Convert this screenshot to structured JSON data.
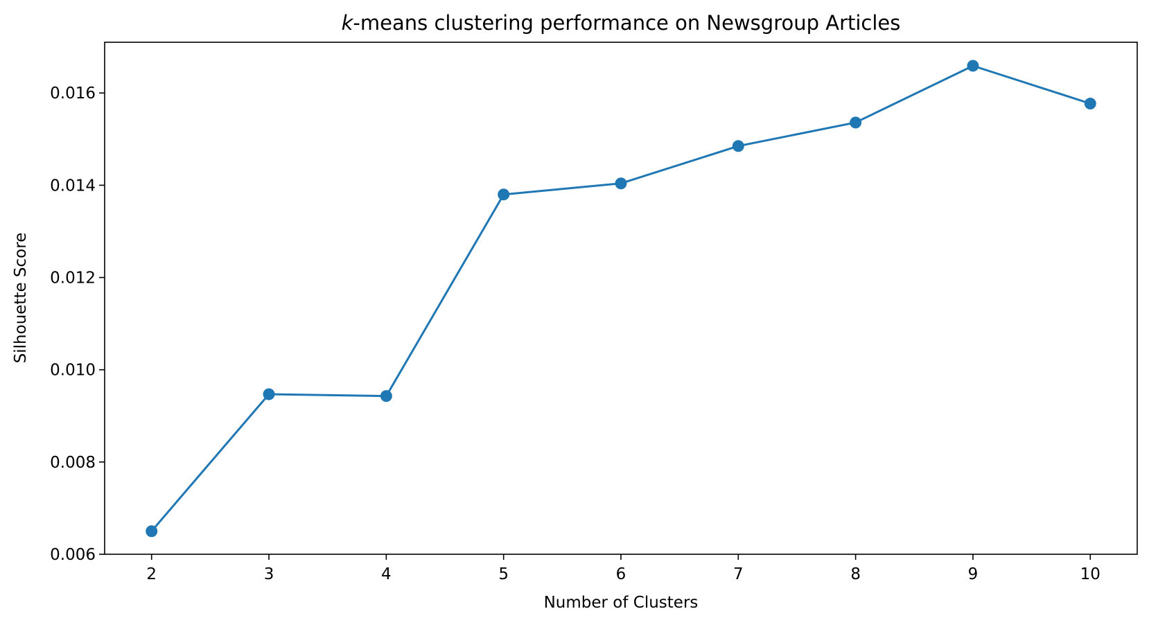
{
  "chart_data": {
    "type": "line",
    "title_italic": "k",
    "title": "-means clustering performance on Newsgroup Articles",
    "xlabel": "Number of Clusters",
    "ylabel": "Silhouette Score",
    "x": [
      2,
      3,
      4,
      5,
      6,
      7,
      8,
      9,
      10
    ],
    "y": [
      0.0065,
      0.00947,
      0.00943,
      0.0138,
      0.01404,
      0.01485,
      0.01536,
      0.01659,
      0.01577
    ],
    "xticks": [
      "2",
      "3",
      "4",
      "5",
      "6",
      "7",
      "8",
      "9",
      "10"
    ],
    "yticks": [
      "0.006",
      "0.008",
      "0.010",
      "0.012",
      "0.014",
      "0.016"
    ],
    "xlim": [
      1.6,
      10.4
    ],
    "ylim": [
      0.006,
      0.0171
    ],
    "grid": false,
    "legend": "none",
    "series_color": "#1f77b4",
    "marker": "circle"
  }
}
